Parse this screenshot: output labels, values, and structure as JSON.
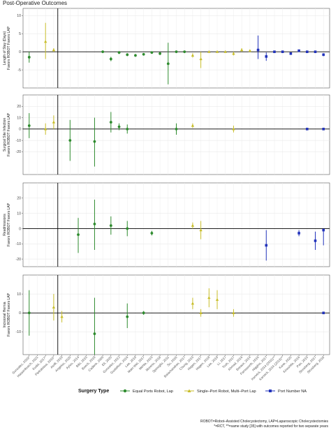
{
  "title": "Post-Operative Outcomes",
  "legend": {
    "title": "Surgery Type",
    "items": [
      {
        "label": "Equal Ports Robot, Lap",
        "color": "#2e8b2e",
        "shape": "circle"
      },
      {
        "label": "Single–Port Robot, Multi–Port Lap",
        "color": "#c8be2a",
        "shape": "triangle"
      },
      {
        "label": "Port Number NA",
        "color": "#2233bb",
        "shape": "square"
      }
    ]
  },
  "footnote": [
    "ROBOT=Robot–Assisted Cholecystectomy, LAP=Laparoscopic Cholecystectomies",
    "*=RCT, **=same study [35] with outcomes reported for two separate years"
  ],
  "chart_data": {
    "type": "scatter",
    "studies": [
      "Gonzalez, 2019*",
      "Hassenbusch, 2021",
      "Kudsi, 2017*",
      "Pietrabissa, 2016*",
      "Aiolfi, 2019",
      "Angelou, 2020",
      "Ayloo, 2014",
      "Bibi, 2015",
      "Boeck, 2018",
      "Cadiere, 2000",
      "Ell, 2020",
      "Gonzalez, 2013",
      "Gustafson, 2016",
      "Lee, 2019",
      "Main Wei, 2017",
      "Mehta, 2015",
      "Moreno, 2018",
      "Spinoglio, 2011",
      "Su, 2016",
      "Balachandran, 2017",
      "Chung, 2015",
      "Hagen, 2017",
      "Hagen, 2018",
      "Lee, 2019",
      "Li, 2017",
      "Tosh, 2017",
      "Ahmad, 2016",
      "Breaux, 2014",
      "Farnsworth, 2016",
      "Higgins, 2017",
      "Karwick, 2014 (2011)**",
      "Karwick, 2014 (2013)**",
      "Kane, 2020",
      "Kinoshita, 2016",
      "Pan, 2015",
      "Strosberg, 2017",
      "Strosberg, 2018"
    ],
    "separator_after_index": 3,
    "panels": [
      {
        "ylabel": "Length of Stay (Days)\nFavors ROBOT  Favors LAP",
        "yticks": [
          -5,
          0,
          5,
          10
        ],
        "ylim": [
          -10,
          12
        ],
        "points": [
          {
            "i": 0,
            "y": -1.5,
            "lo": -3,
            "hi": 0,
            "g": "green"
          },
          {
            "i": 2,
            "y": 2.8,
            "lo": -2,
            "hi": 8,
            "g": "yellow"
          },
          {
            "i": 3,
            "y": 0.5,
            "lo": 0,
            "hi": 1,
            "g": "yellow"
          },
          {
            "i": 9,
            "y": 0,
            "lo": 0,
            "hi": 0,
            "g": "green"
          },
          {
            "i": 10,
            "y": -2,
            "lo": -2.6,
            "hi": -1.4,
            "g": "green"
          },
          {
            "i": 11,
            "y": -0.2,
            "lo": -0.6,
            "hi": 0.2,
            "g": "green"
          },
          {
            "i": 12,
            "y": -0.8,
            "lo": -1.2,
            "hi": -0.4,
            "g": "green"
          },
          {
            "i": 13,
            "y": -1,
            "lo": -1.4,
            "hi": -0.6,
            "g": "green"
          },
          {
            "i": 14,
            "y": -0.7,
            "lo": -1,
            "hi": -0.4,
            "g": "green"
          },
          {
            "i": 15,
            "y": -0.2,
            "lo": -0.5,
            "hi": 0.1,
            "g": "green"
          },
          {
            "i": 16,
            "y": -0.5,
            "lo": -0.9,
            "hi": -0.1,
            "g": "green"
          },
          {
            "i": 17,
            "y": -3.3,
            "lo": -9,
            "hi": 2.5,
            "g": "green"
          },
          {
            "i": 18,
            "y": 0,
            "lo": -0.3,
            "hi": 0.3,
            "g": "green"
          },
          {
            "i": 19,
            "y": 0,
            "lo": -0.3,
            "hi": 0.3,
            "g": "green"
          },
          {
            "i": 20,
            "y": -1,
            "lo": -1.6,
            "hi": -0.4,
            "g": "yellow"
          },
          {
            "i": 21,
            "y": -2,
            "lo": -4.5,
            "hi": 0,
            "g": "yellow"
          },
          {
            "i": 22,
            "y": 0,
            "lo": -0.2,
            "hi": 0.2,
            "g": "yellow"
          },
          {
            "i": 23,
            "y": 0,
            "lo": -0.2,
            "hi": 0.2,
            "g": "yellow"
          },
          {
            "i": 24,
            "y": 0,
            "lo": -0.3,
            "hi": 0.3,
            "g": "yellow"
          },
          {
            "i": 25,
            "y": -0.5,
            "lo": -1,
            "hi": 0,
            "g": "yellow"
          },
          {
            "i": 26,
            "y": 0.5,
            "lo": 0,
            "hi": 1,
            "g": "yellow"
          },
          {
            "i": 27,
            "y": 0.3,
            "lo": 0,
            "hi": 0.6,
            "g": "yellow"
          },
          {
            "i": 28,
            "y": 0.5,
            "lo": -2,
            "hi": 4.5,
            "g": "blue"
          },
          {
            "i": 29,
            "y": -1.3,
            "lo": -2.5,
            "hi": -0.2,
            "g": "blue"
          },
          {
            "i": 30,
            "y": 0,
            "lo": -0.3,
            "hi": 0.3,
            "g": "blue"
          },
          {
            "i": 31,
            "y": 0,
            "lo": -0.3,
            "hi": 0.3,
            "g": "blue"
          },
          {
            "i": 32,
            "y": -0.5,
            "lo": -0.8,
            "hi": -0.2,
            "g": "blue"
          },
          {
            "i": 33,
            "y": 0.3,
            "lo": 0,
            "hi": 0.6,
            "g": "blue"
          },
          {
            "i": 34,
            "y": 0,
            "lo": -0.3,
            "hi": 0.3,
            "g": "blue"
          },
          {
            "i": 35,
            "y": 0,
            "lo": -0.3,
            "hi": 0.3,
            "g": "blue"
          },
          {
            "i": 36,
            "y": -0.8,
            "lo": -1.2,
            "hi": -0.4,
            "g": "blue"
          }
        ]
      },
      {
        "ylabel": "Surgical Site Infection\nFavors ROBOT  Favors LAP",
        "yticks": [
          -20,
          -10,
          0,
          10,
          20
        ],
        "ylim": [
          -40,
          30
        ],
        "points": [
          {
            "i": 0,
            "y": 3,
            "lo": -8,
            "hi": 14,
            "g": "green"
          },
          {
            "i": 2,
            "y": 0,
            "lo": -5,
            "hi": 5,
            "g": "yellow"
          },
          {
            "i": 3,
            "y": 6,
            "lo": 0,
            "hi": 12,
            "g": "yellow"
          },
          {
            "i": 5,
            "y": -10,
            "lo": -28,
            "hi": 8,
            "g": "green"
          },
          {
            "i": 8,
            "y": -11,
            "lo": -33,
            "hi": 10,
            "g": "green"
          },
          {
            "i": 10,
            "y": 6,
            "lo": -3,
            "hi": 15,
            "g": "green"
          },
          {
            "i": 11,
            "y": 2,
            "lo": -1,
            "hi": 5,
            "g": "green"
          },
          {
            "i": 12,
            "y": 0,
            "lo": -4,
            "hi": 4,
            "g": "green"
          },
          {
            "i": 18,
            "y": 0,
            "lo": -5,
            "hi": 5,
            "g": "green"
          },
          {
            "i": 20,
            "y": 3,
            "lo": 1,
            "hi": 5,
            "g": "yellow"
          },
          {
            "i": 25,
            "y": 0,
            "lo": -3,
            "hi": 3,
            "g": "yellow"
          },
          {
            "i": 34,
            "y": 0,
            "lo": -0.5,
            "hi": 0.5,
            "g": "blue"
          },
          {
            "i": 36,
            "y": 0,
            "lo": -1,
            "hi": 1,
            "g": "blue"
          }
        ]
      },
      {
        "ylabel": "Readmissions\nFavors ROBOT  Favors LAP",
        "yticks": [
          -20,
          -10,
          0,
          10,
          20
        ],
        "ylim": [
          -25,
          30
        ],
        "points": [
          {
            "i": 6,
            "y": -4,
            "lo": -16,
            "hi": 7,
            "g": "green"
          },
          {
            "i": 8,
            "y": 3,
            "lo": -14,
            "hi": 19,
            "g": "green"
          },
          {
            "i": 10,
            "y": 2,
            "lo": -4,
            "hi": 8,
            "g": "green"
          },
          {
            "i": 12,
            "y": 0,
            "lo": -5,
            "hi": 5,
            "g": "green"
          },
          {
            "i": 15,
            "y": -3,
            "lo": -4.5,
            "hi": -1.5,
            "g": "green"
          },
          {
            "i": 20,
            "y": 2,
            "lo": 0,
            "hi": 4,
            "g": "yellow"
          },
          {
            "i": 21,
            "y": -1,
            "lo": -7,
            "hi": 5,
            "g": "yellow"
          },
          {
            "i": 29,
            "y": -11,
            "lo": -21,
            "hi": -1,
            "g": "blue"
          },
          {
            "i": 33,
            "y": -3,
            "lo": -5,
            "hi": -1,
            "g": "blue"
          },
          {
            "i": 35,
            "y": -8,
            "lo": -14,
            "hi": -2,
            "g": "blue"
          },
          {
            "i": 36,
            "y": -1,
            "lo": -11,
            "hi": 0,
            "g": "blue"
          }
        ]
      },
      {
        "ylabel": "Incisional Hernia\nFavors ROBOT  Favors LAP",
        "yticks": [
          -10,
          0,
          10
        ],
        "ylim": [
          -22,
          20
        ],
        "points": [
          {
            "i": 0,
            "y": 0,
            "lo": -12,
            "hi": 12,
            "g": "green"
          },
          {
            "i": 3,
            "y": 3,
            "lo": -4,
            "hi": 10,
            "g": "yellow"
          },
          {
            "i": 4,
            "y": -2,
            "lo": -5,
            "hi": 1,
            "g": "yellow"
          },
          {
            "i": 8,
            "y": -11,
            "lo": -31,
            "hi": 8,
            "g": "green"
          },
          {
            "i": 12,
            "y": -2,
            "lo": -8,
            "hi": 5,
            "g": "green"
          },
          {
            "i": 14,
            "y": 0,
            "lo": -1,
            "hi": 1,
            "g": "green"
          },
          {
            "i": 20,
            "y": 5,
            "lo": 2,
            "hi": 8,
            "g": "yellow"
          },
          {
            "i": 21,
            "y": 0,
            "lo": -2,
            "hi": 2,
            "g": "yellow"
          },
          {
            "i": 22,
            "y": 8,
            "lo": 3,
            "hi": 13,
            "g": "yellow"
          },
          {
            "i": 23,
            "y": 7,
            "lo": 2,
            "hi": 12,
            "g": "yellow"
          },
          {
            "i": 25,
            "y": 0,
            "lo": -2,
            "hi": 2,
            "g": "yellow"
          },
          {
            "i": 36,
            "y": 0,
            "lo": -0.5,
            "hi": 0.5,
            "g": "blue"
          }
        ]
      }
    ]
  }
}
